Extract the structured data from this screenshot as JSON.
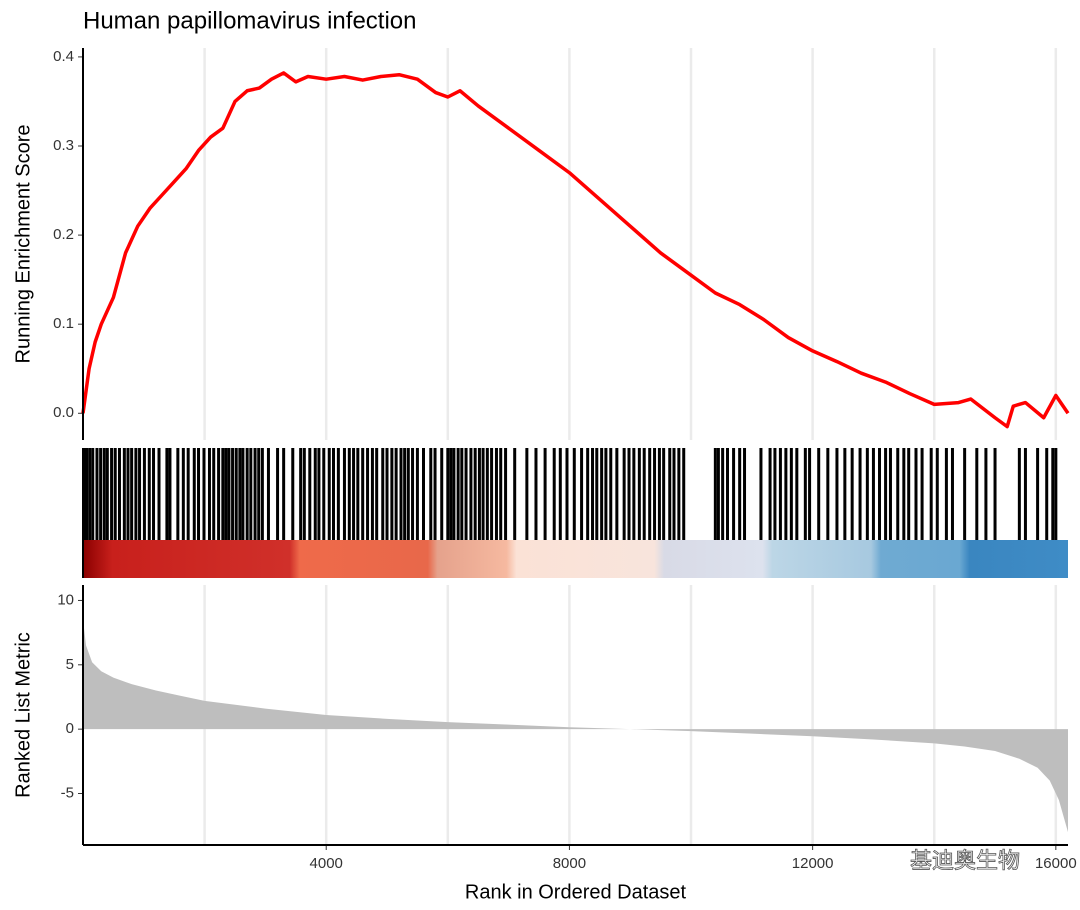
{
  "chart_data": [
    {
      "type": "line",
      "title": "Human papillomavirus infection",
      "ylabel": "Running Enrichment Score",
      "x": [
        0,
        100,
        200,
        300,
        500,
        700,
        900,
        1100,
        1300,
        1500,
        1700,
        1900,
        2100,
        2300,
        2500,
        2700,
        2900,
        3100,
        3300,
        3500,
        3700,
        4000,
        4300,
        4600,
        4900,
        5200,
        5500,
        5800,
        6000,
        6200,
        6500,
        7000,
        7500,
        8000,
        8500,
        9000,
        9500,
        10000,
        10400,
        10800,
        11200,
        11600,
        12000,
        12400,
        12800,
        13200,
        13600,
        14000,
        14400,
        14600,
        15000,
        15200,
        15300,
        15500,
        15800,
        16000,
        16200
      ],
      "values": [
        0,
        0.05,
        0.08,
        0.1,
        0.13,
        0.18,
        0.21,
        0.23,
        0.245,
        0.26,
        0.275,
        0.295,
        0.31,
        0.32,
        0.35,
        0.362,
        0.365,
        0.375,
        0.382,
        0.372,
        0.378,
        0.375,
        0.378,
        0.374,
        0.378,
        0.38,
        0.375,
        0.36,
        0.355,
        0.362,
        0.345,
        0.32,
        0.295,
        0.27,
        0.24,
        0.21,
        0.18,
        0.155,
        0.135,
        0.122,
        0.105,
        0.085,
        0.07,
        0.058,
        0.045,
        0.035,
        0.022,
        0.01,
        0.012,
        0.016,
        -0.005,
        -0.015,
        0.008,
        0.012,
        -0.005,
        0.02,
        0
      ],
      "color": "#ff0000",
      "xlim": [
        0,
        16200
      ],
      "ylim": [
        -0.03,
        0.41
      ],
      "yticks": [
        {
          "value": 0,
          "label": "0.0"
        },
        0.1,
        0.2,
        0.3,
        0.4
      ],
      "grid": true
    },
    {
      "type": "barcode",
      "color": "#000000",
      "xlim": [
        0,
        16200
      ],
      "x": [
        20,
        60,
        110,
        160,
        230,
        290,
        350,
        400,
        470,
        530,
        600,
        680,
        740,
        800,
        870,
        930,
        1010,
        1090,
        1160,
        1250,
        1380,
        1430,
        1560,
        1650,
        1730,
        1830,
        1900,
        1990,
        2080,
        2150,
        2230,
        2300,
        2350,
        2400,
        2460,
        2520,
        2580,
        2630,
        2700,
        2760,
        2830,
        2890,
        2950,
        3050,
        3200,
        3300,
        3450,
        3580,
        3640,
        3730,
        3820,
        3880,
        3960,
        4050,
        4120,
        4200,
        4300,
        4380,
        4450,
        4520,
        4600,
        4680,
        4760,
        4830,
        4930,
        5000,
        5080,
        5150,
        5230,
        5290,
        5350,
        5420,
        5500,
        5600,
        5720,
        5790,
        5900,
        6000,
        6050,
        6100,
        6170,
        6230,
        6300,
        6380,
        6450,
        6520,
        6580,
        6650,
        6720,
        6800,
        6870,
        6950,
        7100,
        7300,
        7450,
        7600,
        7750,
        7850,
        7960,
        8080,
        8200,
        8300,
        8380,
        8450,
        8530,
        8600,
        8680,
        8780,
        8900,
        8980,
        9060,
        9150,
        9230,
        9320,
        9400,
        9480,
        9550,
        9650,
        9720,
        9800,
        9880,
        10400,
        10450,
        10520,
        10600,
        10700,
        10800,
        10880,
        11150,
        11300,
        11380,
        11470,
        11560,
        11650,
        11740,
        11880,
        11950,
        12100,
        12250,
        12400,
        12530,
        12650,
        12780,
        12900,
        13000,
        13100,
        13200,
        13280,
        13400,
        13500,
        13580,
        13700,
        13800,
        13950,
        14050,
        14200,
        14300,
        14500,
        14700,
        14850,
        15000,
        15400,
        15500,
        15700,
        15850,
        15950,
        16000
      ]
    },
    {
      "type": "area",
      "ylabel": "Ranked List Metric",
      "xlabel": "Rank in Ordered Dataset",
      "x": [
        0,
        50,
        150,
        300,
        500,
        800,
        1200,
        1600,
        2000,
        3000,
        4000,
        5000,
        6000,
        7000,
        8000,
        9000,
        10000,
        11000,
        12000,
        13000,
        14000,
        14500,
        15000,
        15400,
        15700,
        15900,
        16050,
        16200
      ],
      "values": [
        8.5,
        6.5,
        5.2,
        4.5,
        4.0,
        3.5,
        3.0,
        2.6,
        2.2,
        1.6,
        1.1,
        0.8,
        0.55,
        0.35,
        0.15,
        0.0,
        -0.15,
        -0.35,
        -0.55,
        -0.8,
        -1.1,
        -1.35,
        -1.7,
        -2.3,
        -3.0,
        -4.0,
        -5.5,
        -8.0
      ],
      "color": "#bebebe",
      "xlim": [
        0,
        16200
      ],
      "ylim": [
        -9,
        11.2
      ],
      "yticks": [
        -5,
        0,
        5,
        10
      ],
      "xticks": [
        4000,
        8000,
        12000,
        16000
      ],
      "xminor": [
        2000,
        6000,
        10000,
        14000
      ],
      "grid": true,
      "watermark": "基迪奥生物"
    }
  ]
}
